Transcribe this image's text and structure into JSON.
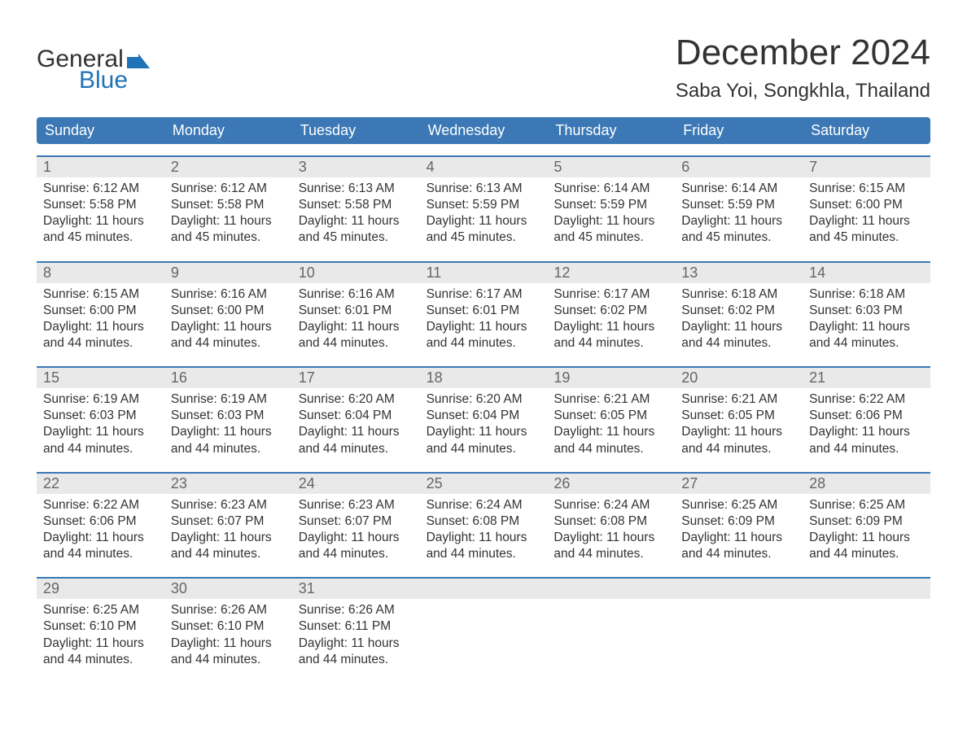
{
  "logo": {
    "text_top": "General",
    "text_bottom": "Blue",
    "flag_color": "#1f73b7"
  },
  "title": "December 2024",
  "location": "Saba Yoi, Songkhla, Thailand",
  "colors": {
    "header_bg": "#3b78b5",
    "header_text": "#ffffff",
    "daynum_bg": "#e9e9e9",
    "daynum_border": "#3b78b5",
    "body_bg": "#ffffff",
    "text": "#333333",
    "daynum_text": "#666666"
  },
  "weekdays": [
    "Sunday",
    "Monday",
    "Tuesday",
    "Wednesday",
    "Thursday",
    "Friday",
    "Saturday"
  ],
  "weeks": [
    [
      {
        "n": "1",
        "sunrise": "6:12 AM",
        "sunset": "5:58 PM",
        "daylight": "11 hours and 45 minutes."
      },
      {
        "n": "2",
        "sunrise": "6:12 AM",
        "sunset": "5:58 PM",
        "daylight": "11 hours and 45 minutes."
      },
      {
        "n": "3",
        "sunrise": "6:13 AM",
        "sunset": "5:58 PM",
        "daylight": "11 hours and 45 minutes."
      },
      {
        "n": "4",
        "sunrise": "6:13 AM",
        "sunset": "5:59 PM",
        "daylight": "11 hours and 45 minutes."
      },
      {
        "n": "5",
        "sunrise": "6:14 AM",
        "sunset": "5:59 PM",
        "daylight": "11 hours and 45 minutes."
      },
      {
        "n": "6",
        "sunrise": "6:14 AM",
        "sunset": "5:59 PM",
        "daylight": "11 hours and 45 minutes."
      },
      {
        "n": "7",
        "sunrise": "6:15 AM",
        "sunset": "6:00 PM",
        "daylight": "11 hours and 45 minutes."
      }
    ],
    [
      {
        "n": "8",
        "sunrise": "6:15 AM",
        "sunset": "6:00 PM",
        "daylight": "11 hours and 44 minutes."
      },
      {
        "n": "9",
        "sunrise": "6:16 AM",
        "sunset": "6:00 PM",
        "daylight": "11 hours and 44 minutes."
      },
      {
        "n": "10",
        "sunrise": "6:16 AM",
        "sunset": "6:01 PM",
        "daylight": "11 hours and 44 minutes."
      },
      {
        "n": "11",
        "sunrise": "6:17 AM",
        "sunset": "6:01 PM",
        "daylight": "11 hours and 44 minutes."
      },
      {
        "n": "12",
        "sunrise": "6:17 AM",
        "sunset": "6:02 PM",
        "daylight": "11 hours and 44 minutes."
      },
      {
        "n": "13",
        "sunrise": "6:18 AM",
        "sunset": "6:02 PM",
        "daylight": "11 hours and 44 minutes."
      },
      {
        "n": "14",
        "sunrise": "6:18 AM",
        "sunset": "6:03 PM",
        "daylight": "11 hours and 44 minutes."
      }
    ],
    [
      {
        "n": "15",
        "sunrise": "6:19 AM",
        "sunset": "6:03 PM",
        "daylight": "11 hours and 44 minutes."
      },
      {
        "n": "16",
        "sunrise": "6:19 AM",
        "sunset": "6:03 PM",
        "daylight": "11 hours and 44 minutes."
      },
      {
        "n": "17",
        "sunrise": "6:20 AM",
        "sunset": "6:04 PM",
        "daylight": "11 hours and 44 minutes."
      },
      {
        "n": "18",
        "sunrise": "6:20 AM",
        "sunset": "6:04 PM",
        "daylight": "11 hours and 44 minutes."
      },
      {
        "n": "19",
        "sunrise": "6:21 AM",
        "sunset": "6:05 PM",
        "daylight": "11 hours and 44 minutes."
      },
      {
        "n": "20",
        "sunrise": "6:21 AM",
        "sunset": "6:05 PM",
        "daylight": "11 hours and 44 minutes."
      },
      {
        "n": "21",
        "sunrise": "6:22 AM",
        "sunset": "6:06 PM",
        "daylight": "11 hours and 44 minutes."
      }
    ],
    [
      {
        "n": "22",
        "sunrise": "6:22 AM",
        "sunset": "6:06 PM",
        "daylight": "11 hours and 44 minutes."
      },
      {
        "n": "23",
        "sunrise": "6:23 AM",
        "sunset": "6:07 PM",
        "daylight": "11 hours and 44 minutes."
      },
      {
        "n": "24",
        "sunrise": "6:23 AM",
        "sunset": "6:07 PM",
        "daylight": "11 hours and 44 minutes."
      },
      {
        "n": "25",
        "sunrise": "6:24 AM",
        "sunset": "6:08 PM",
        "daylight": "11 hours and 44 minutes."
      },
      {
        "n": "26",
        "sunrise": "6:24 AM",
        "sunset": "6:08 PM",
        "daylight": "11 hours and 44 minutes."
      },
      {
        "n": "27",
        "sunrise": "6:25 AM",
        "sunset": "6:09 PM",
        "daylight": "11 hours and 44 minutes."
      },
      {
        "n": "28",
        "sunrise": "6:25 AM",
        "sunset": "6:09 PM",
        "daylight": "11 hours and 44 minutes."
      }
    ],
    [
      {
        "n": "29",
        "sunrise": "6:25 AM",
        "sunset": "6:10 PM",
        "daylight": "11 hours and 44 minutes."
      },
      {
        "n": "30",
        "sunrise": "6:26 AM",
        "sunset": "6:10 PM",
        "daylight": "11 hours and 44 minutes."
      },
      {
        "n": "31",
        "sunrise": "6:26 AM",
        "sunset": "6:11 PM",
        "daylight": "11 hours and 44 minutes."
      },
      null,
      null,
      null,
      null
    ]
  ],
  "labels": {
    "sunrise": "Sunrise:",
    "sunset": "Sunset:",
    "daylight": "Daylight:"
  }
}
